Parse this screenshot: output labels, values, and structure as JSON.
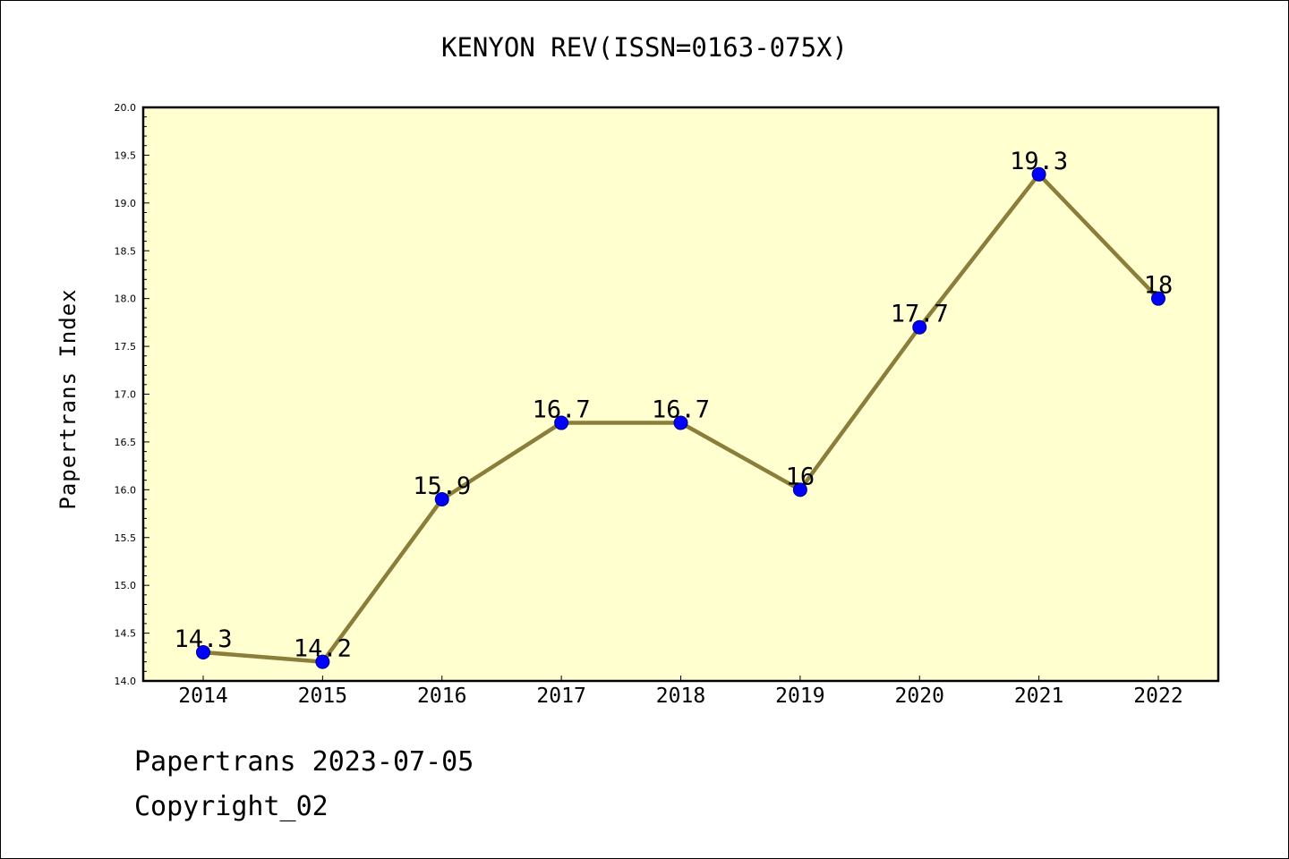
{
  "chart_data": {
    "type": "line",
    "title": "KENYON REV(ISSN=0163-075X)",
    "xlabel": "",
    "ylabel": "Papertrans Index",
    "categories": [
      "2014",
      "2015",
      "2016",
      "2017",
      "2018",
      "2019",
      "2020",
      "2021",
      "2022"
    ],
    "series": [
      {
        "values": [
          14.3,
          14.2,
          15.9,
          16.7,
          16.7,
          16.0,
          17.7,
          19.3,
          18.0
        ],
        "labels": [
          "14.3",
          "14.2",
          "15.9",
          "16.7",
          "16.7",
          "16",
          "17.7",
          "19.3",
          "18"
        ]
      }
    ],
    "ylim": [
      14.0,
      20.0
    ],
    "yticks": [
      "14.0",
      "14.5",
      "15.0",
      "15.5",
      "16.0",
      "16.5",
      "17.0",
      "17.5",
      "18.0",
      "18.5",
      "19.0",
      "19.5",
      "20.0"
    ],
    "grid": false,
    "legend": "none",
    "colors": {
      "plot_background": "#ffffd0",
      "line": "#8b7d3a",
      "marker": "#0000ff",
      "marker_edge": "#000080"
    }
  },
  "footer": {
    "line1": "Papertrans 2023-07-05",
    "line2": "Copyright_02"
  }
}
